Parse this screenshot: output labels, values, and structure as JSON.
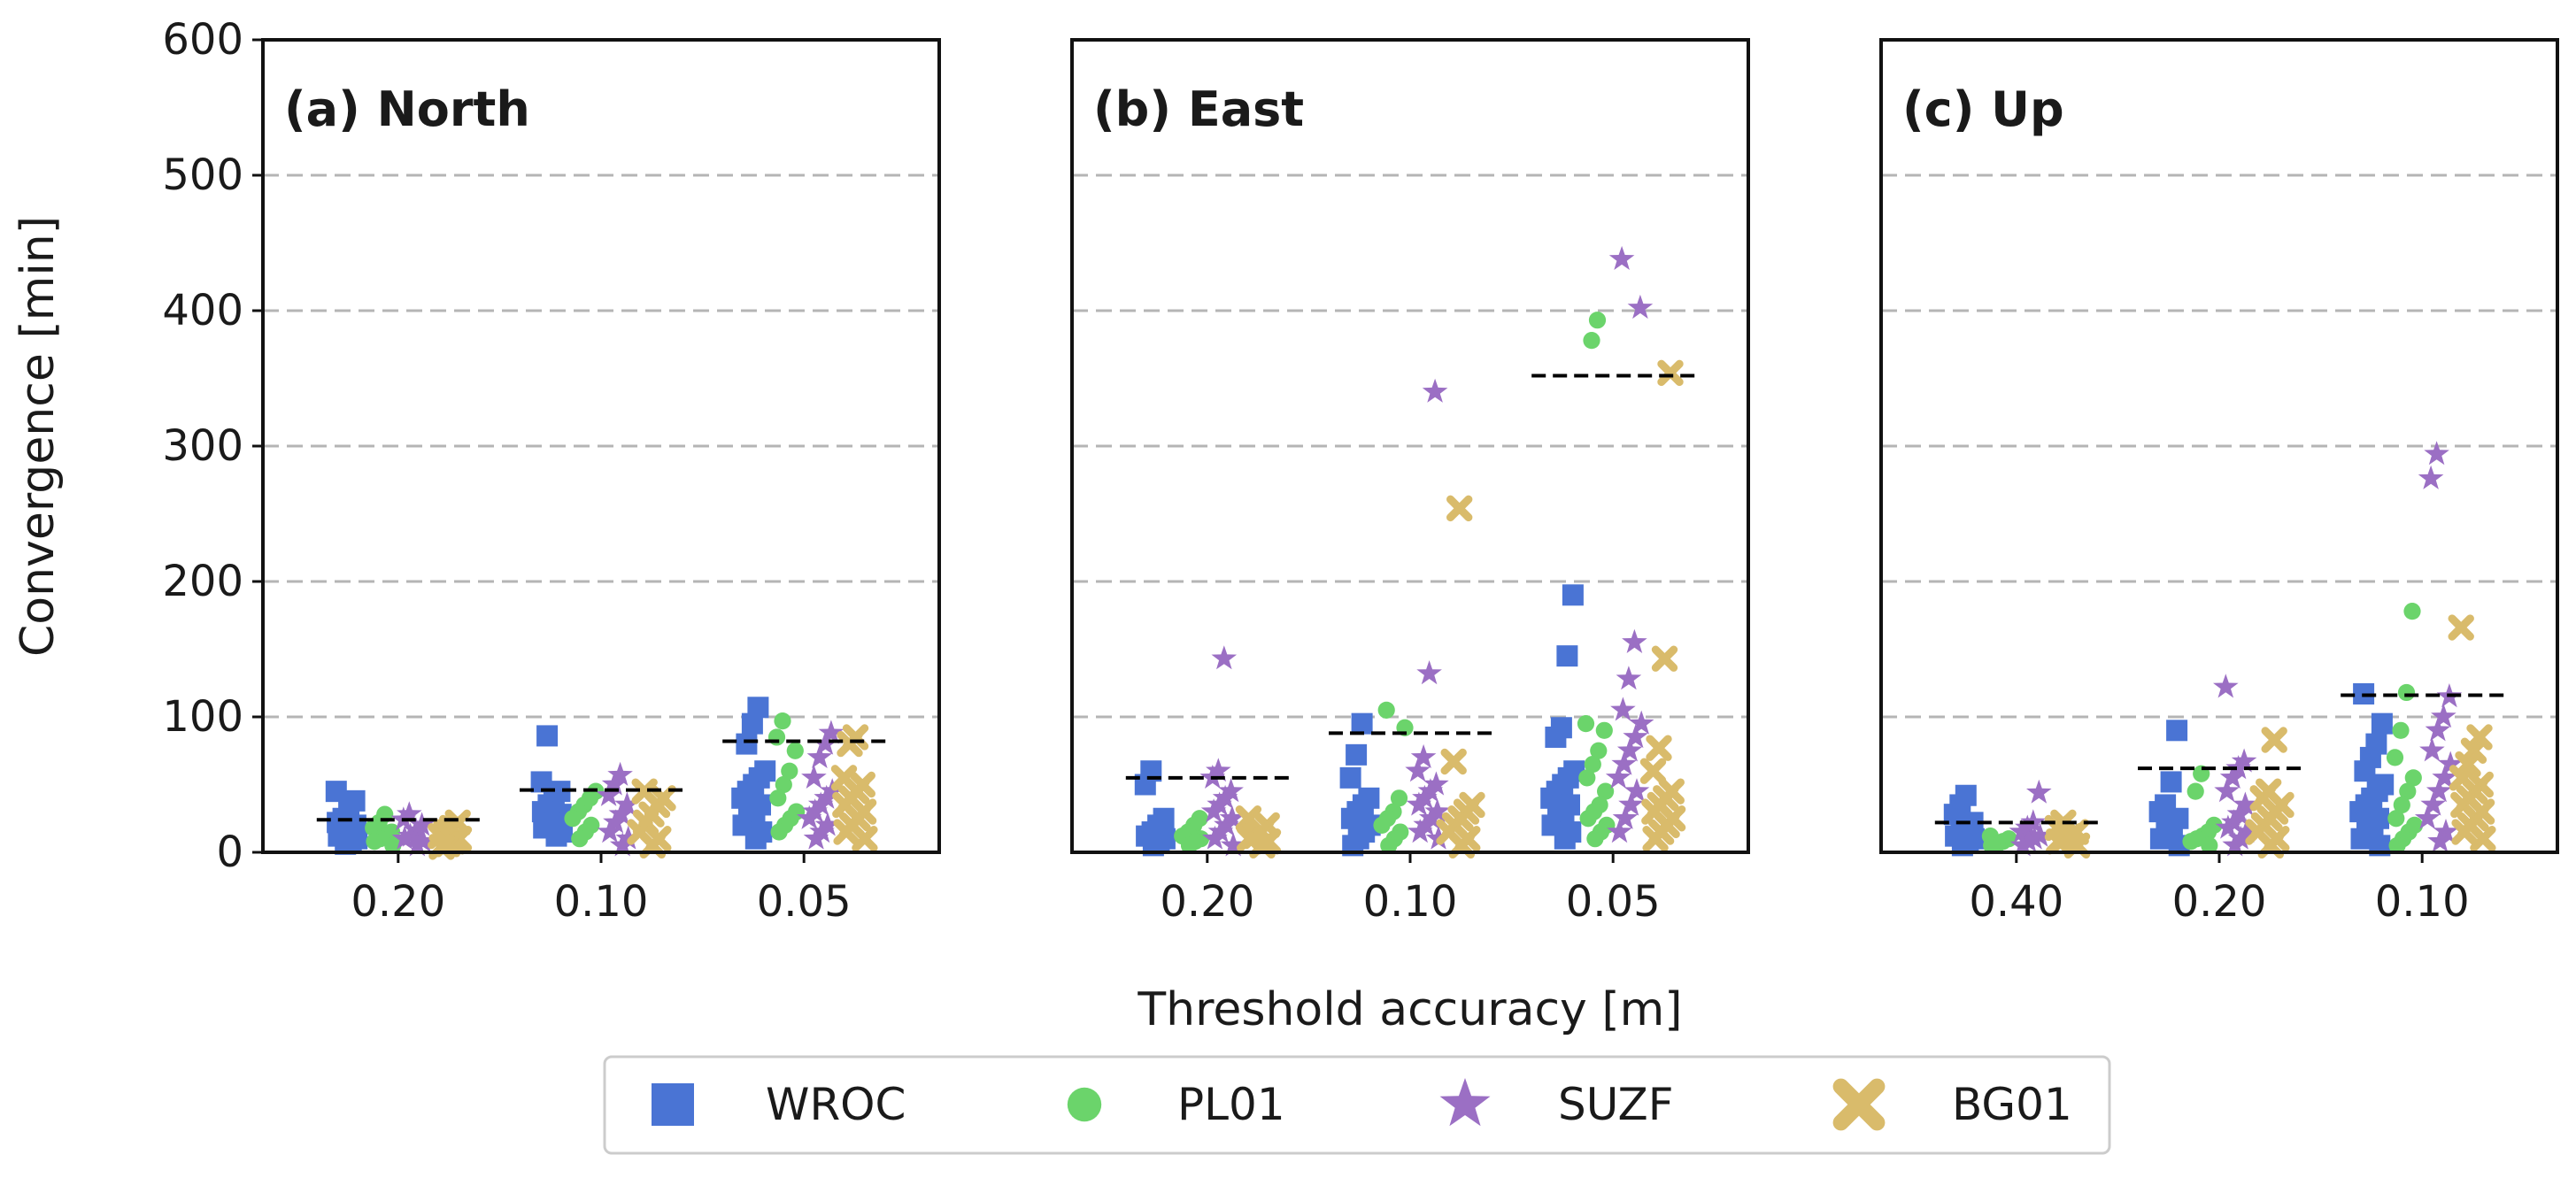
{
  "chart_data": {
    "type": "scatter",
    "ylabel": "Convergence [min]",
    "xlabel": "Threshold accuracy [m]",
    "ylim": [
      0,
      600
    ],
    "yticks": [
      "0",
      "100",
      "200",
      "300",
      "400",
      "500",
      "600"
    ],
    "grid": "horizontal dashed",
    "legend_position": "bottom-center",
    "series": [
      {
        "name": "WROC",
        "color": "#4a74d4",
        "marker": "square"
      },
      {
        "name": "PL01",
        "color": "#6bd46b",
        "marker": "circle"
      },
      {
        "name": "SUZF",
        "color": "#9b6fc4",
        "marker": "star"
      },
      {
        "name": "BG01",
        "color": "#d9bb6b",
        "marker": "x"
      }
    ],
    "panels": [
      {
        "label": "(a)",
        "title": "North",
        "categories": [
          "0.20",
          "0.10",
          "0.05"
        ],
        "medians": [
          24,
          46,
          82
        ],
        "points": [
          [
            [
              45,
              38,
              30,
              25,
              22,
              20,
              18,
              15,
              12,
              10,
              8,
              6
            ],
            [
              28,
              22,
              18,
              15,
              12,
              10,
              8,
              5
            ],
            [
              28,
              24,
              20,
              16,
              12,
              10,
              8,
              5
            ],
            [
              22,
              18,
              15,
              12,
              10,
              8,
              6,
              4
            ]
          ],
          [
            [
              86,
              52,
              45,
              40,
              35,
              30,
              28,
              25,
              22,
              18,
              15,
              12
            ],
            [
              45,
              40,
              35,
              30,
              25,
              20,
              15,
              10
            ],
            [
              57,
              50,
              42,
              35,
              28,
              22,
              15,
              10,
              5
            ],
            [
              45,
              40,
              35,
              28,
              22,
              15,
              10,
              5
            ]
          ],
          [
            [
              107,
              95,
              80,
              60,
              55,
              50,
              45,
              40,
              35,
              30,
              25,
              20,
              15,
              10
            ],
            [
              97,
              85,
              75,
              60,
              50,
              40,
              30,
              25,
              20,
              15
            ],
            [
              88,
              80,
              70,
              55,
              45,
              40,
              35,
              30,
              25,
              20,
              15,
              10
            ],
            [
              85,
              80,
              55,
              50,
              45,
              40,
              35,
              30,
              25,
              20,
              15,
              10
            ]
          ]
        ]
      },
      {
        "label": "(b)",
        "title": "East",
        "categories": [
          "0.20",
          "0.10",
          "0.05"
        ],
        "medians": [
          55,
          88,
          352
        ],
        "points": [
          [
            [
              60,
              50,
              25,
              20,
              15,
              12,
              10,
              8,
              5
            ],
            [
              25,
              20,
              15,
              12,
              10,
              8,
              5
            ],
            [
              143,
              60,
              55,
              45,
              40,
              35,
              30,
              25,
              20,
              15,
              10,
              5
            ],
            [
              25,
              20,
              15,
              12,
              10,
              8,
              5
            ]
          ],
          [
            [
              95,
              72,
              55,
              40,
              35,
              30,
              25,
              20,
              15,
              10,
              5
            ],
            [
              105,
              92,
              40,
              30,
              25,
              20,
              15,
              10,
              5
            ],
            [
              340,
              132,
              70,
              60,
              50,
              45,
              40,
              35,
              30,
              25,
              20,
              15,
              10
            ],
            [
              254,
              67,
              35,
              30,
              25,
              20,
              15,
              10,
              5
            ]
          ],
          [
            [
              190,
              145,
              92,
              85,
              60,
              55,
              50,
              45,
              40,
              35,
              30,
              25,
              20,
              15,
              10
            ],
            [
              393,
              378,
              95,
              90,
              75,
              65,
              55,
              45,
              35,
              30,
              25,
              20,
              15,
              10
            ],
            [
              438,
              402,
              155,
              128,
              105,
              95,
              85,
              75,
              65,
              55,
              45,
              35,
              25,
              15
            ],
            [
              354,
              143,
              77,
              60,
              45,
              40,
              35,
              30,
              25,
              20,
              15,
              10
            ]
          ]
        ]
      },
      {
        "label": "(c)",
        "title": "Up",
        "categories": [
          "0.40",
          "0.20",
          "0.10"
        ],
        "medians": [
          22,
          62,
          116
        ],
        "points": [
          [
            [
              42,
              35,
              28,
              22,
              18,
              15,
              12,
              10,
              8,
              5
            ],
            [
              12,
              10,
              8,
              6,
              5
            ],
            [
              44,
              22,
              18,
              15,
              12,
              10,
              8,
              5
            ],
            [
              22,
              18,
              15,
              12,
              10,
              8,
              5
            ]
          ],
          [
            [
              90,
              52,
              35,
              30,
              25,
              20,
              15,
              10,
              5
            ],
            [
              58,
              45,
              20,
              15,
              12,
              10,
              8,
              5
            ],
            [
              122,
              67,
              62,
              55,
              45,
              35,
              28,
              22,
              18,
              15,
              10,
              5
            ],
            [
              83,
              45,
              40,
              35,
              30,
              25,
              20,
              15,
              10,
              5
            ]
          ],
          [
            [
              117,
              95,
              80,
              70,
              60,
              50,
              45,
              40,
              35,
              30,
              25,
              20,
              15,
              10,
              5
            ],
            [
              178,
              118,
              90,
              70,
              55,
              45,
              35,
              25,
              20,
              15,
              10,
              5
            ],
            [
              294,
              276,
              115,
              100,
              90,
              75,
              65,
              55,
              45,
              35,
              25,
              15,
              8
            ],
            [
              166,
              85,
              75,
              65,
              55,
              50,
              45,
              40,
              35,
              30,
              25,
              20,
              15,
              10
            ]
          ]
        ]
      }
    ]
  }
}
